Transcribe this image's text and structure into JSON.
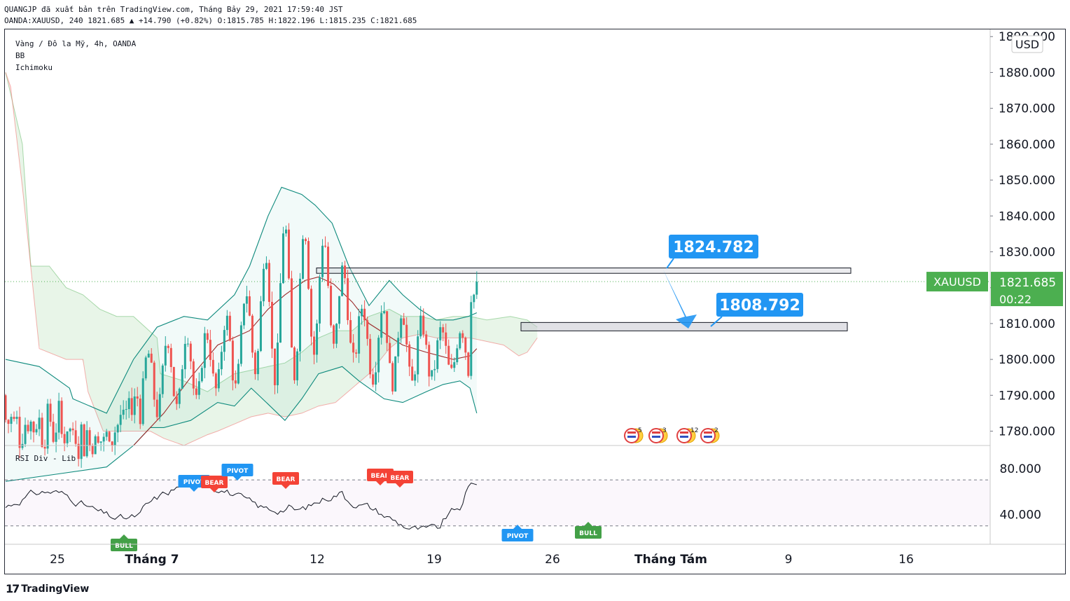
{
  "header": {
    "line1": "QUANGJP đã xuất bản trên TradingView.com, Tháng Bảy 29, 2021 17:59:40 JST",
    "line2": "OANDA:XAUUSD, 240 1821.685 ▲ +14.790 (+0.82%) O:1815.785 H:1822.196 L:1815.235 C:1821.685"
  },
  "legend": {
    "symbol": "Vàng / Đô la Mỹ, 4h, OANDA",
    "ind1": "BB",
    "ind2": "Ichimoku",
    "rsi": "RSI Div - Lib"
  },
  "price_axis": {
    "currency": "USD",
    "ticks": [
      "1890.000",
      "1880.000",
      "1870.000",
      "1860.000",
      "1850.000",
      "1840.000",
      "1830.000",
      "1820.000",
      "1810.000",
      "1800.000",
      "1790.000",
      "1780.000"
    ],
    "tick_values": [
      1890,
      1880,
      1870,
      1860,
      1850,
      1840,
      1830,
      1820,
      1810,
      1800,
      1790,
      1780
    ],
    "last_price": "1821.685",
    "countdown": "00:22",
    "symbol_tag": "XAUUSD"
  },
  "rsi_axis": {
    "ticks": [
      "80.000",
      "40.000"
    ],
    "tick_values": [
      80,
      40
    ],
    "bands": [
      70,
      30
    ]
  },
  "time_axis": {
    "labels": [
      "25",
      "Tháng 7",
      "12",
      "19",
      "26",
      "Tháng Tám",
      "9",
      "16"
    ],
    "bold": [
      false,
      true,
      false,
      false,
      false,
      true,
      false,
      false
    ]
  },
  "annotations": {
    "resistance": "1824.782",
    "support": "1808.792"
  },
  "events": [
    "5",
    "3",
    "12",
    "2"
  ],
  "colors": {
    "up": "#26a69a",
    "down": "#ef5350",
    "bb": "#0e8a7d",
    "label_blue": "#2196f3",
    "tag_green": "#4caf50",
    "bear": "#f44336",
    "bull": "#43a047"
  },
  "chart_data": {
    "type": "candlestick",
    "symbol": "OANDA:XAUUSD",
    "timeframe": "4h",
    "last": {
      "open": 1815.785,
      "high": 1822.196,
      "low": 1815.235,
      "close": 1821.685,
      "change": 14.79,
      "change_pct": 0.82
    },
    "horizontal_levels": [
      {
        "label": "1824.782",
        "low": 1824.0,
        "high": 1825.5
      },
      {
        "label": "1808.792",
        "low": 1808.0,
        "high": 1810.3
      }
    ],
    "price_range": [
      1776,
      1892
    ],
    "rsi_range": [
      14,
      100
    ],
    "rsi_signals": [
      {
        "label": "BULL",
        "time": "Jul 2",
        "type": "bull"
      },
      {
        "label": "PIVOT",
        "time": "Jul 5",
        "type": "pivot"
      },
      {
        "label": "BEAR",
        "time": "Jul 6",
        "type": "bear"
      },
      {
        "label": "PIVOT",
        "time": "Jul 8",
        "type": "pivot"
      },
      {
        "label": "BEAR",
        "time": "Jul 12",
        "type": "bear"
      },
      {
        "label": "BEAR",
        "time": "Jul 16",
        "type": "bear"
      },
      {
        "label": "BEAR",
        "time": "Jul 17",
        "type": "bear"
      },
      {
        "label": "PIVOT",
        "time": "Jul 24",
        "type": "pivot"
      },
      {
        "label": "BULL",
        "time": "Jul 28",
        "type": "bull"
      }
    ],
    "bb_upper": [
      [
        0,
        1800
      ],
      [
        2.0,
        1798
      ],
      [
        3.8,
        1792
      ],
      [
        4.0,
        1789
      ],
      [
        6.0,
        1785
      ],
      [
        7.6,
        1800
      ],
      [
        9.0,
        1809
      ],
      [
        10.6,
        1812
      ],
      [
        12.0,
        1811
      ],
      [
        13.6,
        1818
      ],
      [
        14.5,
        1826
      ],
      [
        15.6,
        1840
      ],
      [
        16.4,
        1848
      ],
      [
        17.6,
        1846
      ],
      [
        18.4,
        1843
      ],
      [
        19.4,
        1838
      ],
      [
        20.4,
        1826
      ],
      [
        21.6,
        1815
      ],
      [
        22.8,
        1822
      ],
      [
        23.6,
        1818
      ],
      [
        24.6,
        1814
      ],
      [
        25.6,
        1811
      ],
      [
        26.6,
        1811
      ],
      [
        27.5,
        1812
      ],
      [
        28.0,
        1813
      ]
    ],
    "bb_lower": [
      [
        0,
        1766
      ],
      [
        3,
        1768
      ],
      [
        6,
        1770
      ],
      [
        7.6,
        1776
      ],
      [
        8.6,
        1781
      ],
      [
        9.4,
        1781
      ],
      [
        11,
        1783
      ],
      [
        12.6,
        1788
      ],
      [
        13.6,
        1787
      ],
      [
        14.6,
        1792
      ],
      [
        15.5,
        1788
      ],
      [
        16.6,
        1783
      ],
      [
        17.6,
        1789
      ],
      [
        18.6,
        1796
      ],
      [
        20.0,
        1798
      ],
      [
        21.0,
        1794
      ],
      [
        21.6,
        1792
      ],
      [
        22.5,
        1789
      ],
      [
        23.6,
        1788
      ],
      [
        25.0,
        1791
      ],
      [
        26.0,
        1793
      ],
      [
        27.0,
        1794
      ],
      [
        27.6,
        1792
      ],
      [
        28.0,
        1785
      ]
    ],
    "bb_basis": [
      [
        7.6,
        1776
      ],
      [
        9.4,
        1785
      ],
      [
        11,
        1795
      ],
      [
        12.6,
        1804
      ],
      [
        14.5,
        1808
      ],
      [
        15.6,
        1814
      ],
      [
        16.6,
        1818
      ],
      [
        17.8,
        1822
      ],
      [
        18.6,
        1823
      ],
      [
        19.5,
        1821
      ],
      [
        20.6,
        1816
      ],
      [
        21.6,
        1810
      ],
      [
        23.6,
        1804
      ],
      [
        25.0,
        1802
      ],
      [
        26.6,
        1800
      ],
      [
        27.6,
        1801
      ],
      [
        28.0,
        1803
      ]
    ],
    "kumo": {
      "span_a": [
        [
          0,
          1880
        ],
        [
          1,
          1860
        ],
        [
          1.5,
          1826
        ],
        [
          2.6,
          1826
        ],
        [
          3.6,
          1820
        ],
        [
          4.6,
          1818
        ],
        [
          5.6,
          1814
        ],
        [
          6.6,
          1812
        ],
        [
          7.6,
          1812
        ],
        [
          9.0,
          1806
        ],
        [
          9.2,
          1796
        ],
        [
          10.6,
          1794
        ],
        [
          12.0,
          1791
        ],
        [
          12.6,
          1793
        ],
        [
          13.6,
          1796
        ],
        [
          14.6,
          1797
        ],
        [
          15.6,
          1798
        ],
        [
          16.6,
          1799
        ],
        [
          17.6,
          1802
        ],
        [
          18.6,
          1806
        ],
        [
          19.6,
          1808
        ],
        [
          20.6,
          1808
        ],
        [
          21.6,
          1812
        ],
        [
          22.8,
          1814
        ],
        [
          23.6,
          1812
        ],
        [
          24.6,
          1812
        ],
        [
          25.6,
          1811
        ],
        [
          26.6,
          1812
        ],
        [
          27.6,
          1812
        ],
        [
          28.6,
          1811
        ],
        [
          30.0,
          1812
        ],
        [
          31.0,
          1811
        ],
        [
          31.6,
          1809
        ]
      ],
      "span_b": [
        [
          0,
          1880
        ],
        [
          0.3,
          1876
        ],
        [
          1.0,
          1848
        ],
        [
          2.0,
          1803
        ],
        [
          3.6,
          1800
        ],
        [
          4.6,
          1800
        ],
        [
          4.9,
          1791
        ],
        [
          5.8,
          1780
        ],
        [
          6.6,
          1780
        ],
        [
          7.5,
          1780
        ],
        [
          8.6,
          1780
        ],
        [
          9.4,
          1778
        ],
        [
          10.6,
          1776
        ],
        [
          12.0,
          1779
        ],
        [
          12.6,
          1780
        ],
        [
          13.6,
          1782
        ],
        [
          14.6,
          1784
        ],
        [
          15.6,
          1785
        ],
        [
          16.6,
          1784
        ],
        [
          17.6,
          1785
        ],
        [
          18.6,
          1787
        ],
        [
          19.6,
          1788
        ],
        [
          20.6,
          1792
        ],
        [
          21.6,
          1796
        ],
        [
          22.8,
          1803
        ],
        [
          23.6,
          1806
        ],
        [
          24.6,
          1807
        ],
        [
          25.6,
          1806
        ],
        [
          26.6,
          1806
        ],
        [
          27.6,
          1806
        ],
        [
          28.6,
          1805
        ],
        [
          29.6,
          1804
        ],
        [
          30.5,
          1801
        ],
        [
          31.0,
          1802
        ],
        [
          31.6,
          1806
        ]
      ]
    }
  }
}
